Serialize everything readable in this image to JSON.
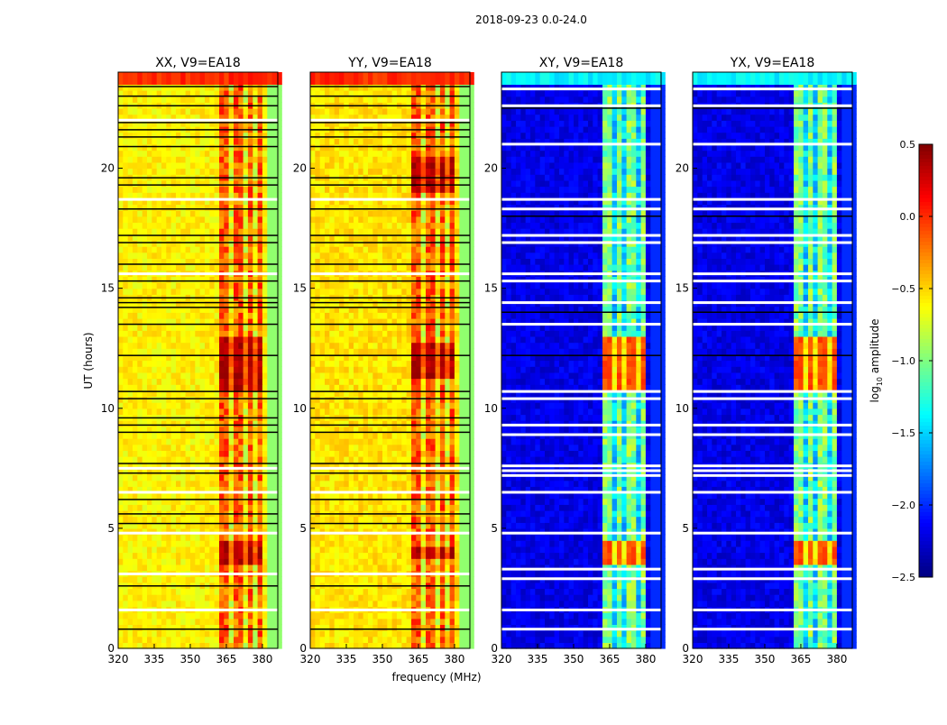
{
  "chart_data": {
    "type": "heatmap",
    "title": "2018-09-23 0.0-24.0",
    "xlabel": "frequency (MHz)",
    "ylabel": "UT (hours)",
    "xlim": [
      320,
      386.4
    ],
    "ylim": [
      0,
      24
    ],
    "xticks": [
      320,
      335,
      350,
      365,
      380
    ],
    "yticks": [
      0,
      5,
      10,
      15,
      20
    ],
    "colorbar": {
      "label_main": "log",
      "label_sub": "10",
      "label_rest": " amplitude",
      "range": [
        -2.5,
        0.5
      ],
      "ticks": [
        "0.5",
        "0.0",
        "−0.5",
        "−1.0",
        "−1.5",
        "−2.0",
        "−2.5"
      ],
      "tick_values": [
        0.5,
        0.0,
        -0.5,
        -1.0,
        -1.5,
        -2.0,
        -2.5
      ],
      "colormap": "jet"
    },
    "panels": [
      {
        "title": "XX, V9=EA18",
        "background": -0.6,
        "band": [
          362,
          380.5
        ],
        "band_level": -0.15,
        "band_gaps": [
          367,
          372.5,
          377.5
        ],
        "edge_level": -0.95,
        "top_level": 0.0,
        "hot_hours": [
          [
            3.4,
            4.6
          ],
          [
            10.8,
            13.0
          ]
        ],
        "hot_level": 0.35,
        "flag_black": [
          0.8,
          2.6,
          5.2,
          5.6,
          6.2,
          7.3,
          7.7,
          9.0,
          9.3,
          9.6,
          10.4,
          10.7,
          12.2,
          13.5,
          14.2,
          14.4,
          14.6,
          15.3,
          16.0,
          16.9,
          17.2,
          18.3,
          19.3,
          19.6,
          20.9,
          21.3,
          21.6,
          21.9,
          22.6,
          23.0,
          23.4
        ],
        "flag_white": [
          1.6,
          3.1,
          4.8,
          6.5,
          7.5,
          15.6,
          18.7,
          22.0
        ]
      },
      {
        "title": "YY, V9=EA18",
        "background": -0.55,
        "band": [
          362,
          380.5
        ],
        "band_level": -0.15,
        "band_gaps": [
          367,
          372.5,
          377.5
        ],
        "edge_level": -0.95,
        "top_level": 0.0,
        "hot_hours": [
          [
            3.8,
            4.3
          ],
          [
            11.2,
            12.8
          ],
          [
            19.0,
            20.5
          ]
        ],
        "hot_level": 0.35,
        "flag_black": [
          0.8,
          2.6,
          5.2,
          5.6,
          6.2,
          7.3,
          7.7,
          9.0,
          9.3,
          9.6,
          10.4,
          10.7,
          12.2,
          13.5,
          14.2,
          14.4,
          14.6,
          15.3,
          16.0,
          16.9,
          17.2,
          18.3,
          19.3,
          19.6,
          20.9,
          21.3,
          21.6,
          21.9,
          22.6,
          23.0,
          23.4
        ],
        "flag_white": [
          1.6,
          3.1,
          4.8,
          6.5,
          7.5,
          15.6,
          18.7,
          22.0
        ]
      },
      {
        "title": "XY, V9=EA18",
        "background": -2.2,
        "band": [
          361.5,
          380.5
        ],
        "band_level": -1.0,
        "band_gaps": [
          366.5,
          371.5,
          376.5
        ],
        "edge_level": -2.0,
        "top_level": -1.4,
        "hot_hours": [
          [
            3.4,
            4.6
          ],
          [
            10.8,
            13.0
          ]
        ],
        "hot_level": -0.1,
        "flag_black": [
          12.2,
          14.0,
          18.0,
          22.5
        ],
        "flag_white": [
          0.8,
          1.6,
          2.9,
          3.3,
          4.8,
          6.5,
          7.2,
          7.4,
          7.6,
          8.9,
          9.3,
          10.4,
          10.7,
          13.5,
          14.4,
          15.3,
          15.6,
          16.9,
          17.2,
          18.3,
          18.7,
          21.0,
          22.6,
          23.3
        ]
      },
      {
        "title": "YX, V9=EA18",
        "background": -2.2,
        "band": [
          361.5,
          380.5
        ],
        "band_level": -1.0,
        "band_gaps": [
          366.5,
          371.5,
          376.5
        ],
        "edge_level": -2.0,
        "top_level": -1.4,
        "hot_hours": [
          [
            3.4,
            4.6
          ],
          [
            10.8,
            13.0
          ]
        ],
        "hot_level": -0.1,
        "flag_black": [
          12.2,
          14.0,
          18.0,
          22.5
        ],
        "flag_white": [
          0.8,
          1.6,
          2.9,
          3.3,
          4.8,
          6.5,
          7.2,
          7.4,
          7.6,
          8.9,
          9.3,
          10.4,
          10.7,
          13.5,
          14.4,
          15.3,
          15.6,
          16.9,
          17.2,
          18.3,
          18.7,
          21.0,
          22.6,
          23.3
        ]
      }
    ]
  }
}
